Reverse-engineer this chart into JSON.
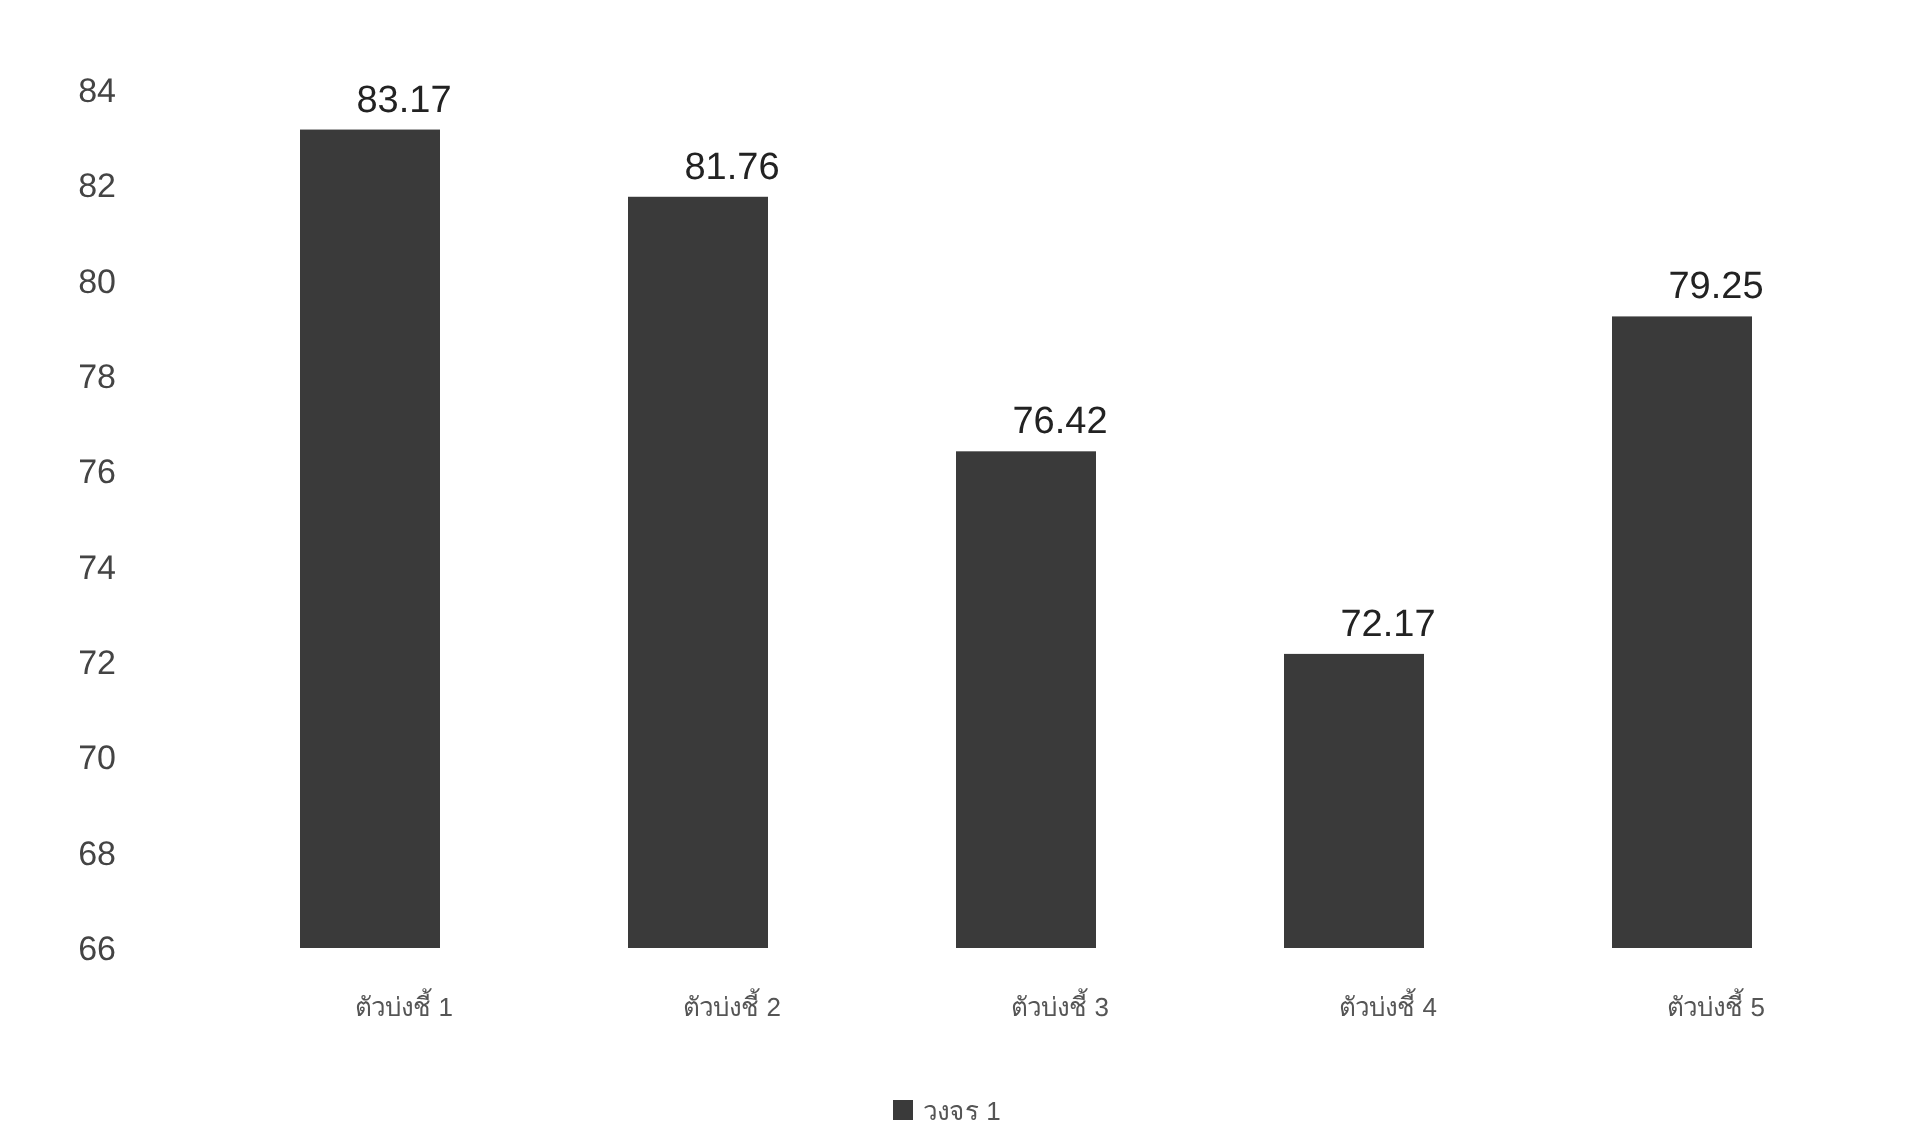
{
  "chart_data": {
    "type": "bar",
    "categories": [
      "ตัวบ่งชี้ 1",
      "ตัวบ่งชี้ 2",
      "ตัวบ่งชี้ 3",
      "ตัวบ่งชี้ 4",
      "ตัวบ่งชี้ 5"
    ],
    "series": [
      {
        "name": "วงจร 1",
        "color": "#3a3a3a",
        "values": [
          83.17,
          81.76,
          76.42,
          72.17,
          79.25
        ]
      }
    ],
    "ylim": [
      66,
      84
    ],
    "yticks": [
      66,
      68,
      70,
      72,
      74,
      76,
      78,
      80,
      82,
      84
    ],
    "data_labels": true,
    "legend": "bottom",
    "grid": false
  }
}
